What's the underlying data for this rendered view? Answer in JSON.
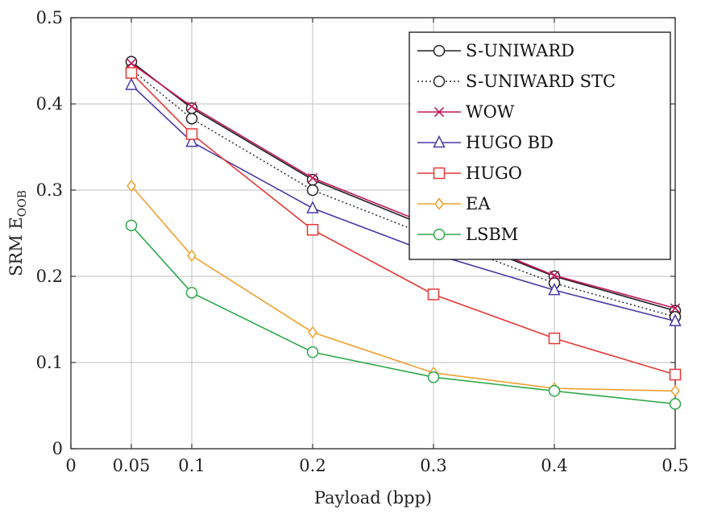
{
  "chart_data": {
    "type": "line",
    "xlabel": "Payload (bpp)",
    "ylabel": "SRM E",
    "ylabel_subscript": "OOB",
    "xlim": [
      0,
      0.5
    ],
    "ylim": [
      0,
      0.5
    ],
    "x_ticks": [
      0,
      0.05,
      0.1,
      0.2,
      0.3,
      0.4,
      0.5
    ],
    "x_tick_labels": [
      "0",
      "0.05",
      "0.1",
      "0.2",
      "0.3",
      "0.4",
      "0.5"
    ],
    "y_ticks": [
      0,
      0.1,
      0.2,
      0.3,
      0.4,
      0.5
    ],
    "y_tick_labels": [
      "0",
      "0.1",
      "0.2",
      "0.3",
      "0.4",
      "0.5"
    ],
    "grid": true,
    "legend_position": "top-right",
    "x": [
      0.05,
      0.1,
      0.2,
      0.3,
      0.4,
      0.5
    ],
    "series": [
      {
        "name": "S-UNIWARD",
        "values": [
          0.449,
          0.395,
          0.312,
          0.255,
          0.2,
          0.16
        ],
        "color": "#222222",
        "marker": "circle",
        "dash": "solid"
      },
      {
        "name": "S-UNIWARD STC",
        "values": [
          0.44,
          0.383,
          0.3,
          0.245,
          0.192,
          0.153
        ],
        "color": "#222222",
        "marker": "circle",
        "dash": "dotted"
      },
      {
        "name": "WOW",
        "values": [
          0.447,
          0.397,
          0.314,
          0.258,
          0.201,
          0.163
        ],
        "color": "#c2185b",
        "marker": "cross",
        "dash": "solid"
      },
      {
        "name": "HUGO BD",
        "values": [
          0.422,
          0.356,
          0.279,
          0.226,
          0.184,
          0.148
        ],
        "color": "#4a3aa7",
        "marker": "triangle",
        "dash": "solid"
      },
      {
        "name": "HUGO",
        "values": [
          0.436,
          0.365,
          0.254,
          0.179,
          0.128,
          0.086
        ],
        "color": "#e53935",
        "marker": "square",
        "dash": "solid"
      },
      {
        "name": "EA",
        "values": [
          0.305,
          0.224,
          0.135,
          0.088,
          0.07,
          0.067
        ],
        "color": "#f0a030",
        "marker": "diamond",
        "dash": "solid"
      },
      {
        "name": "LSBM",
        "values": [
          0.259,
          0.181,
          0.112,
          0.083,
          0.067,
          0.052
        ],
        "color": "#2ea84a",
        "marker": "circle",
        "dash": "solid"
      }
    ]
  }
}
